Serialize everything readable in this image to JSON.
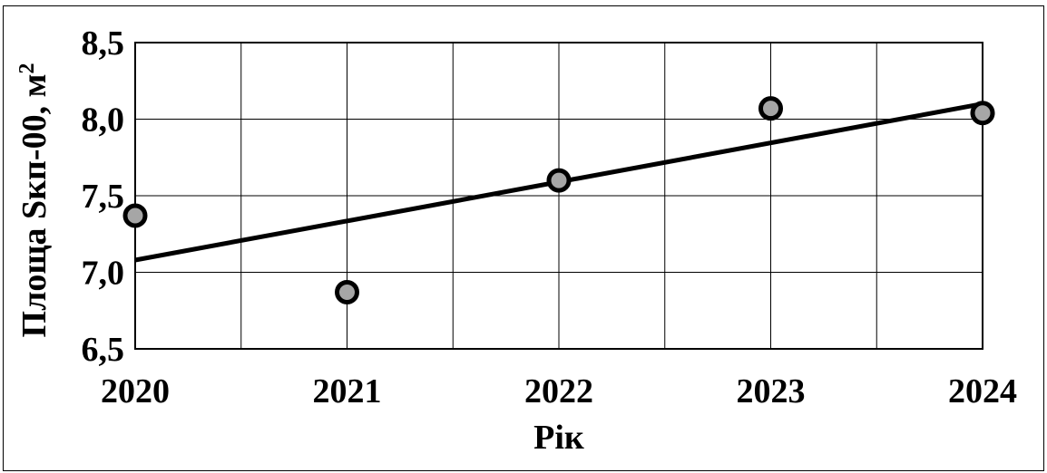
{
  "chart_data": {
    "type": "scatter",
    "title": "",
    "xlabel": "Рік",
    "ylabel": "Площа Sкп-00, м",
    "ylabel_superscript": "2",
    "xlim": [
      2020,
      2024
    ],
    "ylim": [
      6.5,
      8.5
    ],
    "x_ticks": [
      "2020",
      "2021",
      "2022",
      "2023",
      "2024"
    ],
    "y_ticks": [
      "6,5",
      "7,0",
      "7,5",
      "8,0",
      "8,5"
    ],
    "y_tick_values": [
      6.5,
      7.0,
      7.5,
      8.0,
      8.5
    ],
    "grid": true,
    "series": [
      {
        "marker_color": "#a6a6a6",
        "x": [
          2020,
          2021,
          2022,
          2023,
          2024
        ],
        "y": [
          7.37,
          6.87,
          7.6,
          8.07,
          8.04
        ]
      }
    ],
    "trendline": {
      "type": "linear",
      "color": "#000000",
      "x": [
        2020,
        2024
      ],
      "y": [
        7.08,
        8.1
      ]
    }
  }
}
